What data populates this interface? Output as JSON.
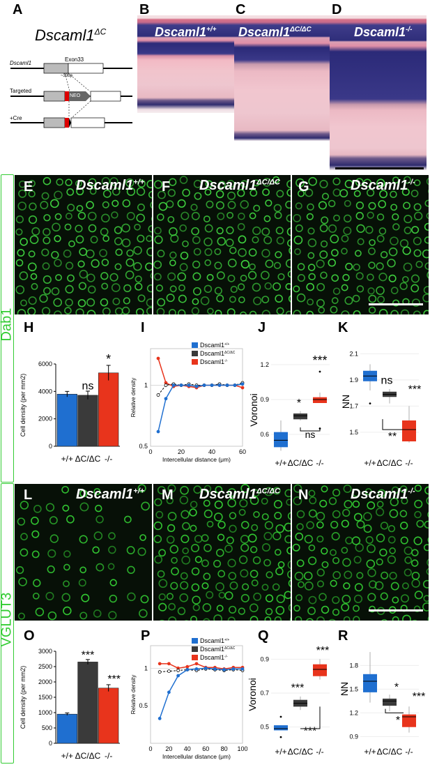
{
  "figure": {
    "panels": [
      "A",
      "B",
      "C",
      "D",
      "E",
      "F",
      "G",
      "H",
      "I",
      "J",
      "K",
      "L",
      "M",
      "N",
      "O",
      "P",
      "Q",
      "R"
    ],
    "genotype_labels": {
      "wt": "Dscaml1",
      "wt_sup": "+/+",
      "dc": "Dscaml1",
      "dc_sup": "ΔC/ΔC",
      "ko": "Dscaml1",
      "ko_sup": "-/-"
    },
    "row_labels": {
      "dab1": "Dab1",
      "vglut3": "VGLUT3"
    }
  },
  "schematic": {
    "title": "Dscaml1",
    "title_sup": "ΔC",
    "gene": "Dscaml1",
    "exon": "Exon33",
    "bp": "~30bp",
    "targeted": "Targeted",
    "neo": "NEO",
    "cre": "+Cre"
  },
  "colors": {
    "wt": "#1f6fd0",
    "dc": "#3a3a3a",
    "ko": "#e8341c",
    "dab1_green": "#3fd43f",
    "vglut3_green": "#33cc33"
  },
  "chart_data": [
    {
      "id": "H",
      "type": "bar",
      "ylabel": "Cell density (per mm2)",
      "ylim": [
        0,
        6000
      ],
      "yticks": [
        "0",
        "2000",
        "4000",
        "6000"
      ],
      "categories": [
        "+/+",
        "ΔC/ΔC",
        "-/-"
      ],
      "values": [
        3800,
        3720,
        5350
      ],
      "errors": [
        200,
        300,
        550
      ],
      "annotations": [
        "ns",
        "*"
      ]
    },
    {
      "id": "I",
      "type": "line",
      "xlabel": "Intercellular distance (μm)",
      "ylabel": "Relative density",
      "xlim": [
        0,
        60
      ],
      "ylim": [
        0.5,
        1.3
      ],
      "xticks": [
        "0",
        "20",
        "40",
        "60"
      ],
      "yticks": [
        "0.5",
        "1"
      ],
      "x": [
        5,
        10,
        15,
        20,
        25,
        30,
        35,
        40,
        45,
        50,
        55,
        60
      ],
      "series": [
        {
          "name": "Dscaml1",
          "sup": "+/+",
          "values": [
            0.62,
            0.89,
            1.0,
            1.0,
            1.0,
            0.99,
            1.0,
            1.0,
            1.0,
            1.0,
            1.0,
            1.01
          ]
        },
        {
          "name": "Dscaml1",
          "sup": "ΔC/ΔC",
          "values": [
            0.92,
            1.0,
            1.01,
            1.0,
            1.01,
            1.0,
            1.0,
            1.0,
            1.01,
            1.0,
            1.0,
            1.02
          ]
        },
        {
          "name": "Dscaml1",
          "sup": "-/-",
          "values": [
            1.22,
            1.02,
            0.99,
            1.0,
            0.99,
            0.98,
            1.0,
            1.0,
            1.0,
            1.0,
            1.0,
            0.98
          ]
        }
      ]
    },
    {
      "id": "J",
      "type": "box",
      "ylabel": "Voronoi",
      "ylim": [
        0.45,
        1.35
      ],
      "yticks": [
        "0.6",
        "0.9",
        "1.2"
      ],
      "categories": [
        "+/+",
        "ΔC/ΔC",
        "-/-"
      ],
      "boxes": [
        {
          "min": 0.46,
          "q1": 0.49,
          "median": 0.55,
          "q3": 0.62,
          "max": 0.72
        },
        {
          "min": 0.72,
          "q1": 0.73,
          "median": 0.76,
          "q3": 0.78,
          "max": 0.8
        },
        {
          "min": 0.87,
          "q1": 0.87,
          "median": 0.9,
          "q3": 0.92,
          "max": 0.96,
          "outliers": [
            0.65,
            1.14
          ]
        }
      ],
      "annotations": [
        "*",
        "***",
        "ns"
      ]
    },
    {
      "id": "K",
      "type": "box",
      "ylabel": "NN",
      "ylim": [
        1.35,
        2.15
      ],
      "yticks": [
        "1.5",
        "1.7",
        "1.9",
        "2.1"
      ],
      "categories": [
        "+/+",
        "ΔC/ΔC",
        "-/-"
      ],
      "boxes": [
        {
          "min": 1.82,
          "q1": 1.89,
          "median": 1.93,
          "q3": 1.97,
          "max": 2.02,
          "outliers": [
            1.72
          ]
        },
        {
          "min": 1.72,
          "q1": 1.77,
          "median": 1.79,
          "q3": 1.81,
          "max": 1.83
        },
        {
          "min": 1.42,
          "q1": 1.43,
          "median": 1.52,
          "q3": 1.59,
          "max": 1.7
        }
      ],
      "annotations": [
        "ns",
        "***",
        "**"
      ]
    },
    {
      "id": "O",
      "type": "bar",
      "ylabel": "Cell density (per mm2)",
      "ylim": [
        0,
        3000
      ],
      "yticks": [
        "0",
        "500",
        "1000",
        "1500",
        "2000",
        "2500",
        "3000"
      ],
      "categories": [
        "+/+",
        "ΔC/ΔC",
        "-/-"
      ],
      "values": [
        950,
        2650,
        1800
      ],
      "errors": [
        40,
        80,
        110
      ],
      "annotations": [
        "***",
        "***"
      ]
    },
    {
      "id": "P",
      "type": "line",
      "xlabel": "Intercellular distance (μm)",
      "ylabel": "Relative density",
      "xlim": [
        0,
        100
      ],
      "ylim": [
        0,
        1.3
      ],
      "xticks": [
        "0",
        "20",
        "40",
        "60",
        "80",
        "100"
      ],
      "yticks": [
        "0.5",
        "1"
      ],
      "x": [
        10,
        20,
        30,
        40,
        50,
        60,
        70,
        80,
        90,
        100
      ],
      "series": [
        {
          "name": "Dscaml1",
          "sup": "+/+",
          "values": [
            0.33,
            0.68,
            0.9,
            0.98,
            0.99,
            1.0,
            0.99,
            0.98,
            0.99,
            0.99
          ]
        },
        {
          "name": "Dscaml1",
          "sup": "ΔC/ΔC",
          "values": [
            0.95,
            0.96,
            0.97,
            0.98,
            0.97,
            0.99,
            0.98,
            0.97,
            0.98,
            0.97
          ]
        },
        {
          "name": "Dscaml1",
          "sup": "-/-",
          "values": [
            1.06,
            1.06,
            1.0,
            1.02,
            1.06,
            1.01,
            1.01,
            0.99,
            1.01,
            1.01
          ]
        }
      ]
    },
    {
      "id": "Q",
      "type": "box",
      "ylabel": "Voronoi",
      "ylim": [
        0.42,
        0.98
      ],
      "yticks": [
        "0.5",
        "0.7",
        "0.9"
      ],
      "categories": [
        "+/+",
        "ΔC/ΔC",
        "-/-"
      ],
      "boxes": [
        {
          "min": 0.48,
          "q1": 0.48,
          "median": 0.49,
          "q3": 0.51,
          "max": 0.51,
          "outliers": [
            0.56,
            0.44
          ]
        },
        {
          "min": 0.6,
          "q1": 0.62,
          "median": 0.64,
          "q3": 0.66,
          "max": 0.68
        },
        {
          "min": 0.78,
          "q1": 0.8,
          "median": 0.84,
          "q3": 0.87,
          "max": 0.9
        }
      ],
      "annotations": [
        "***",
        "***",
        "***"
      ]
    },
    {
      "id": "R",
      "type": "box",
      "ylabel": "NN",
      "ylim": [
        0.85,
        2.05
      ],
      "yticks": [
        "0.9",
        "1.2",
        "1.5",
        "1.8"
      ],
      "categories": [
        "+/+",
        "ΔC/ΔC",
        "-/-"
      ],
      "boxes": [
        {
          "min": 1.33,
          "q1": 1.46,
          "median": 1.6,
          "q3": 1.69,
          "max": 1.97
        },
        {
          "min": 1.22,
          "q1": 1.29,
          "median": 1.35,
          "q3": 1.38,
          "max": 1.43
        },
        {
          "min": 0.95,
          "q1": 1.02,
          "median": 1.15,
          "q3": 1.18,
          "max": 1.28
        }
      ],
      "annotations": [
        "*",
        "***",
        "*"
      ]
    }
  ]
}
